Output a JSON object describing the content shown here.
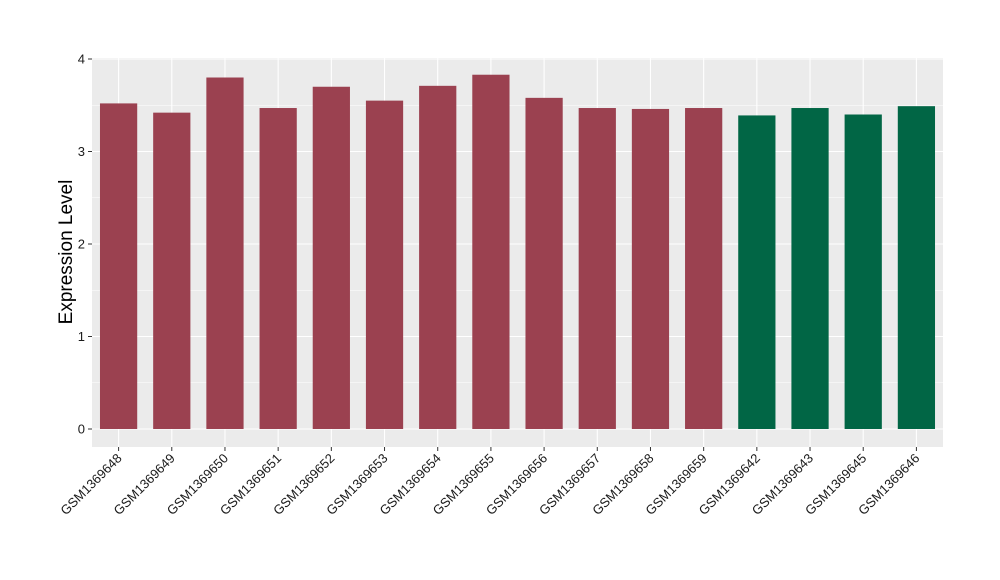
{
  "chart_data": {
    "type": "bar",
    "title": "",
    "xlabel": "",
    "ylabel": "Expression Level",
    "ylim": [
      0,
      4
    ],
    "yticks": [
      "0",
      "1",
      "2",
      "3",
      "4"
    ],
    "grid": true,
    "colors": {
      "group_a": "#9b4150",
      "group_b": "#016645",
      "panel": "#ebebeb",
      "gridline": "#ffffff"
    },
    "categories": [
      "GSM1369648",
      "GSM1369649",
      "GSM1369650",
      "GSM1369651",
      "GSM1369652",
      "GSM1369653",
      "GSM1369654",
      "GSM1369655",
      "GSM1369656",
      "GSM1369657",
      "GSM1369658",
      "GSM1369659",
      "GSM1369642",
      "GSM1369643",
      "GSM1369645",
      "GSM1369646"
    ],
    "values": [
      3.52,
      3.42,
      3.8,
      3.47,
      3.7,
      3.55,
      3.71,
      3.83,
      3.58,
      3.47,
      3.46,
      3.47,
      3.39,
      3.47,
      3.4,
      3.49
    ],
    "bar_groups": [
      "a",
      "a",
      "a",
      "a",
      "a",
      "a",
      "a",
      "a",
      "a",
      "a",
      "a",
      "a",
      "b",
      "b",
      "b",
      "b"
    ]
  }
}
